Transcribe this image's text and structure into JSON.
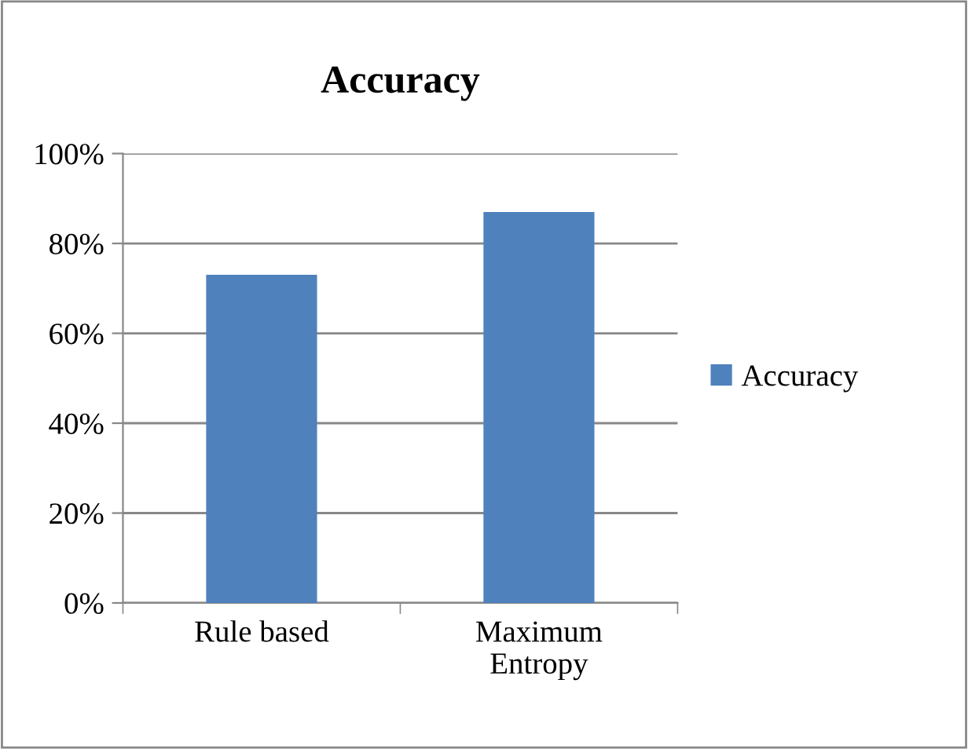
{
  "chart_data": {
    "type": "bar",
    "title": "Accuracy",
    "categories": [
      "Rule based",
      "Maximum\nEntropy"
    ],
    "series": [
      {
        "name": "Accuracy",
        "color": "#4f81bd",
        "values": [
          73,
          87
        ]
      }
    ],
    "ylim": [
      0,
      100
    ],
    "yticks": [
      {
        "value": 0,
        "label": "0%"
      },
      {
        "value": 20,
        "label": "20%"
      },
      {
        "value": 40,
        "label": "40%"
      },
      {
        "value": 60,
        "label": "60%"
      },
      {
        "value": 80,
        "label": "80%"
      },
      {
        "value": 100,
        "label": "100%"
      }
    ],
    "grid": "y",
    "legend": "right"
  }
}
